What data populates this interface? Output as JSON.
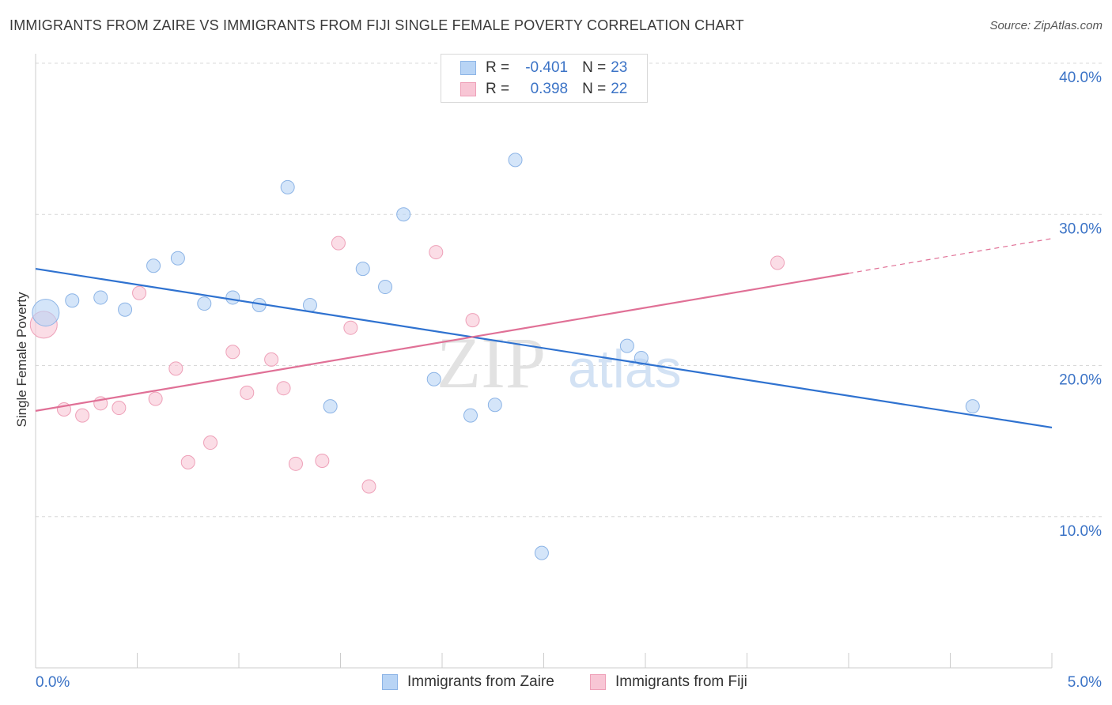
{
  "title": "IMMIGRANTS FROM ZAIRE VS IMMIGRANTS FROM FIJI SINGLE FEMALE POVERTY CORRELATION CHART",
  "source": "Source: ZipAtlas.com",
  "watermark": {
    "zip": "ZIP",
    "atlas": "atlas"
  },
  "legend": {
    "zaire": {
      "r_label": "R =",
      "r_value": "-0.401",
      "n_label": "N =",
      "n_value": "23"
    },
    "fiji": {
      "r_label": "R =",
      "r_value": "0.398",
      "n_label": "N =",
      "n_value": "22"
    }
  },
  "colors": {
    "zaire_fill": "#b8d4f5",
    "zaire_stroke": "#8cb4e6",
    "zaire_line": "#2f72d0",
    "fiji_fill": "#f8c6d5",
    "fiji_stroke": "#eea0b8",
    "fiji_line": "#e07096",
    "tick_text": "#3b73c6"
  },
  "chart_data": {
    "type": "scatter",
    "title": "IMMIGRANTS FROM ZAIRE VS IMMIGRANTS FROM FIJI SINGLE FEMALE POVERTY CORRELATION CHART",
    "xlabel": "",
    "ylabel": "Single Female Poverty",
    "xlim": [
      0,
      5
    ],
    "ylim": [
      0,
      40
    ],
    "x_tick_labels": [
      "0.0%",
      "5.0%"
    ],
    "y_ticks": [
      10,
      20,
      30,
      40
    ],
    "y_tick_labels": [
      "10.0%",
      "20.0%",
      "30.0%",
      "40.0%"
    ],
    "grid": "horizontal dashed",
    "legend_position": "top-center",
    "series": [
      {
        "name": "Immigrants from Zaire",
        "points": [
          {
            "x": 0.05,
            "y": 23.5,
            "size": "large"
          },
          {
            "x": 0.18,
            "y": 24.3
          },
          {
            "x": 0.32,
            "y": 24.5
          },
          {
            "x": 0.44,
            "y": 23.7
          },
          {
            "x": 0.58,
            "y": 26.6
          },
          {
            "x": 0.7,
            "y": 27.1
          },
          {
            "x": 0.83,
            "y": 24.1
          },
          {
            "x": 0.97,
            "y": 24.5
          },
          {
            "x": 1.1,
            "y": 24.0
          },
          {
            "x": 1.24,
            "y": 31.8
          },
          {
            "x": 1.35,
            "y": 24.0
          },
          {
            "x": 1.45,
            "y": 17.3
          },
          {
            "x": 1.61,
            "y": 26.4
          },
          {
            "x": 1.72,
            "y": 25.2
          },
          {
            "x": 1.81,
            "y": 30.0
          },
          {
            "x": 1.96,
            "y": 19.1
          },
          {
            "x": 2.14,
            "y": 16.7
          },
          {
            "x": 2.26,
            "y": 17.4
          },
          {
            "x": 2.36,
            "y": 33.6
          },
          {
            "x": 2.49,
            "y": 7.6
          },
          {
            "x": 2.91,
            "y": 21.3
          },
          {
            "x": 2.98,
            "y": 20.5
          },
          {
            "x": 4.61,
            "y": 17.3
          }
        ],
        "trend": {
          "x0": 0.0,
          "y0": 26.4,
          "x1": 5.0,
          "y1": 15.9
        }
      },
      {
        "name": "Immigrants from Fiji",
        "points": [
          {
            "x": 0.04,
            "y": 22.7,
            "size": "large"
          },
          {
            "x": 0.14,
            "y": 17.1
          },
          {
            "x": 0.23,
            "y": 16.7
          },
          {
            "x": 0.32,
            "y": 17.5
          },
          {
            "x": 0.41,
            "y": 17.2
          },
          {
            "x": 0.51,
            "y": 24.8
          },
          {
            "x": 0.59,
            "y": 17.8
          },
          {
            "x": 0.69,
            "y": 19.8
          },
          {
            "x": 0.75,
            "y": 13.6
          },
          {
            "x": 0.86,
            "y": 14.9
          },
          {
            "x": 0.97,
            "y": 20.9
          },
          {
            "x": 1.04,
            "y": 18.2
          },
          {
            "x": 1.16,
            "y": 20.4
          },
          {
            "x": 1.22,
            "y": 18.5
          },
          {
            "x": 1.28,
            "y": 13.5
          },
          {
            "x": 1.41,
            "y": 13.7
          },
          {
            "x": 1.49,
            "y": 28.1
          },
          {
            "x": 1.55,
            "y": 22.5
          },
          {
            "x": 1.64,
            "y": 12.0
          },
          {
            "x": 1.97,
            "y": 27.5
          },
          {
            "x": 2.15,
            "y": 23.0
          },
          {
            "x": 3.65,
            "y": 26.8
          }
        ],
        "trend": {
          "x0": 0.0,
          "y0": 17.0,
          "x1": 4.0,
          "y1": 26.1
        },
        "trend_dashed_extension": {
          "x0": 4.0,
          "y0": 26.1,
          "x1": 5.0,
          "y1": 28.4
        }
      }
    ]
  }
}
